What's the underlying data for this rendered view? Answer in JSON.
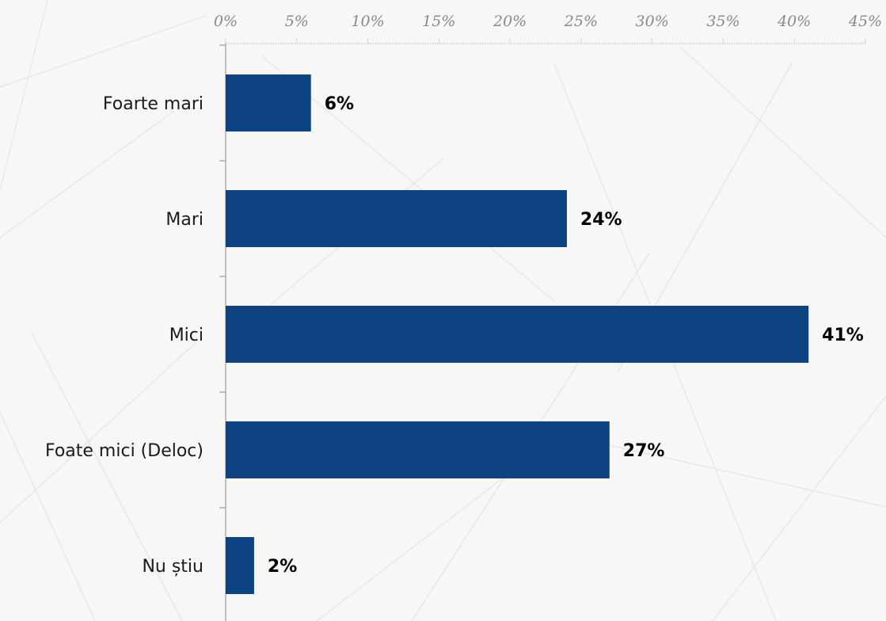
{
  "chart_data": {
    "type": "bar",
    "orientation": "horizontal",
    "categories": [
      "Foarte mari",
      "Mari",
      "Mici",
      "Foate mici (Deloc)",
      "Nu știu"
    ],
    "values": [
      6,
      24,
      41,
      27,
      2
    ],
    "data_labels": [
      "6%",
      "24%",
      "41%",
      "27%",
      "2%"
    ],
    "x_ticks": [
      0,
      5,
      10,
      15,
      20,
      25,
      30,
      35,
      40,
      45
    ],
    "x_tick_labels": [
      "0%",
      "5%",
      "10%",
      "15%",
      "20%",
      "25%",
      "30%",
      "35%",
      "40%",
      "45%"
    ],
    "xlim": [
      0,
      45
    ],
    "x_axis_position": "top",
    "grid": false,
    "legend": "none",
    "bar_color": "#0c4380"
  }
}
